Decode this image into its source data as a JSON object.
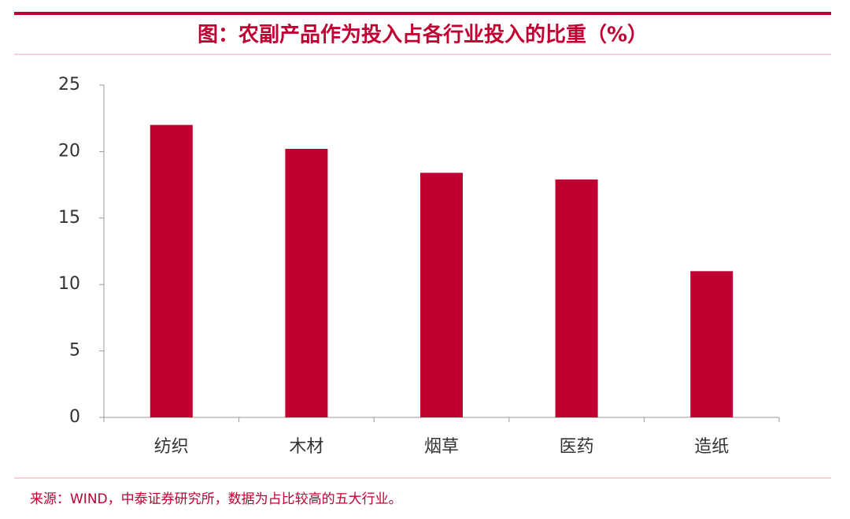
{
  "chart_data": {
    "type": "bar",
    "title": "图：农副产品作为投入占各行业投入的比重（%）",
    "categories": [
      "纺织",
      "木材",
      "烟草",
      "医药",
      "造纸"
    ],
    "values": [
      22.0,
      20.2,
      18.4,
      17.9,
      11.0
    ],
    "color": "#c00030",
    "ylim": [
      0,
      25
    ],
    "yticks": [
      0,
      5,
      10,
      15,
      20,
      25
    ],
    "grid": false,
    "note": "来源：WIND，中泰证券研究所，数据为占比较高的五大行业。"
  }
}
